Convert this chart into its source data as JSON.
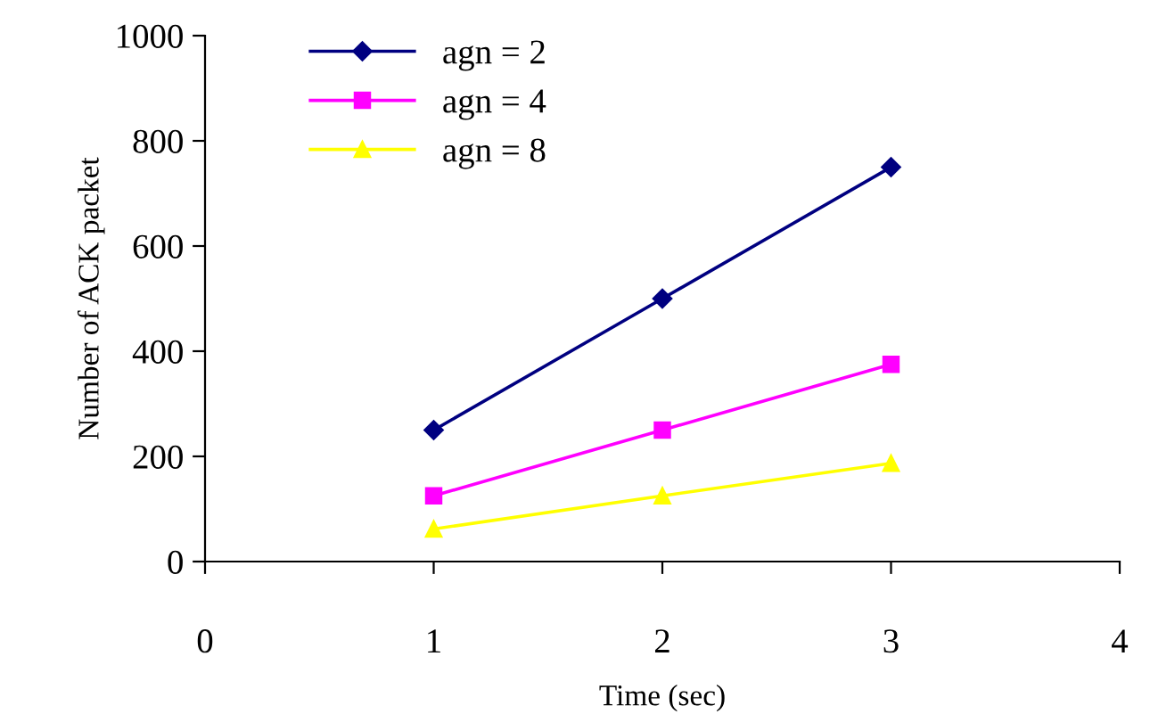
{
  "chart_data": {
    "type": "line",
    "xlabel": "Time (sec)",
    "ylabel": "Number of ACK packet",
    "x": [
      1,
      2,
      3
    ],
    "series": [
      {
        "name": "agn = 2",
        "color": "#000080",
        "marker": "diamond",
        "values": [
          250,
          500,
          750
        ]
      },
      {
        "name": "agn = 4",
        "color": "#ff00ff",
        "marker": "square",
        "values": [
          125,
          250,
          375
        ]
      },
      {
        "name": "agn = 8",
        "color": "#ffff00",
        "marker": "triangle",
        "values": [
          62,
          125,
          187
        ]
      }
    ],
    "xlim": [
      0,
      4
    ],
    "xticks": [
      0,
      1,
      2,
      3,
      4
    ],
    "ylim": [
      0,
      1000
    ],
    "yticks": [
      0,
      200,
      400,
      600,
      800,
      1000
    ],
    "grid": false,
    "legend": "top left",
    "line_style": "solid"
  }
}
